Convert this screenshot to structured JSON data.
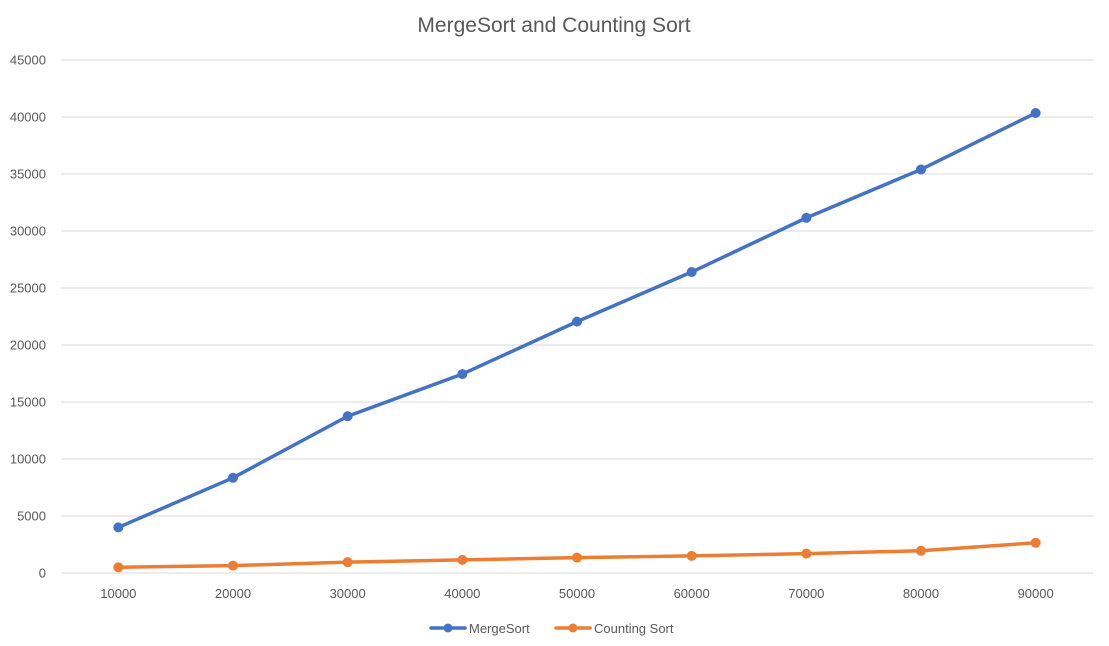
{
  "chart_data": {
    "type": "line",
    "title": "MergeSort and Counting Sort",
    "xlabel": "",
    "ylabel": "",
    "categories": [
      "10000",
      "20000",
      "30000",
      "40000",
      "50000",
      "60000",
      "70000",
      "80000",
      "90000"
    ],
    "series": [
      {
        "name": "MergeSort",
        "color": "#4472C4",
        "values": [
          4000,
          8350,
          13750,
          17450,
          22050,
          26400,
          31150,
          35400,
          40350
        ]
      },
      {
        "name": "Counting Sort",
        "color": "#ED7D31",
        "values": [
          500,
          650,
          950,
          1150,
          1350,
          1500,
          1700,
          1950,
          2650
        ]
      }
    ],
    "ylim": [
      0,
      45000
    ],
    "yticks": [
      0,
      5000,
      10000,
      15000,
      20000,
      25000,
      30000,
      35000,
      40000,
      45000
    ],
    "grid": true,
    "legend": "bottom"
  }
}
